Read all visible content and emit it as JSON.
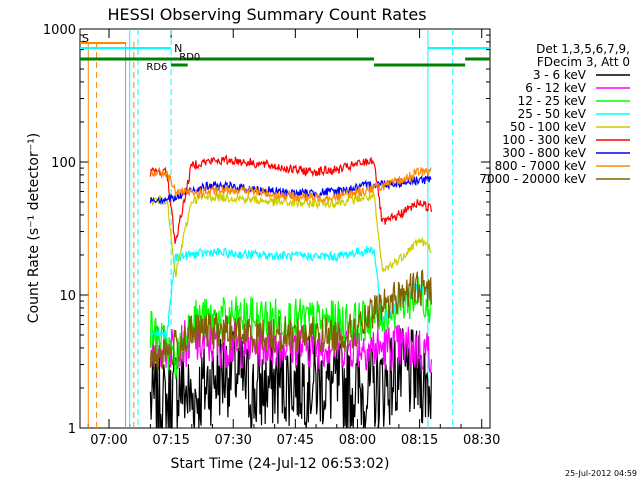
{
  "chart_data": {
    "type": "line",
    "title": "HESSI Observing Summary Count Rates",
    "xlabel": "Start Time (24-Jul-12 06:53:02)",
    "ylabel": "Count Rate (s⁻¹ detector⁻¹)",
    "yscale": "log",
    "ylim": [
      1,
      1000
    ],
    "xlim": [
      "06:53",
      "08:32"
    ],
    "x_ticks": [
      "07:00",
      "07:15",
      "07:30",
      "07:45",
      "08:00",
      "08:15",
      "08:30"
    ],
    "y_ticks": [
      "1",
      "10",
      "100",
      "1000"
    ],
    "grid": false,
    "legend_position": "right",
    "legend_header": [
      "Det 1,3,5,6,7,9,",
      "FDecim 3, Att 0"
    ],
    "footer": "25-Jul-2012 04:59",
    "series": [
      {
        "name": "3 - 6 keV",
        "color": "#000000",
        "points": [
          [
            "07:10",
            1.6
          ],
          [
            "07:14",
            1.5
          ],
          [
            "07:17",
            2.2
          ],
          [
            "07:20",
            1.6
          ],
          [
            "07:25",
            2.4
          ],
          [
            "07:30",
            2.8
          ],
          [
            "07:35",
            1.8
          ],
          [
            "07:40",
            2.2
          ],
          [
            "07:45",
            2.3
          ],
          [
            "07:50",
            2.2
          ],
          [
            "07:55",
            2.1
          ],
          [
            "08:00",
            1.9
          ],
          [
            "08:05",
            2.0
          ],
          [
            "08:10",
            2.6
          ],
          [
            "08:15",
            2.4
          ],
          [
            "08:18",
            2.0
          ]
        ]
      },
      {
        "name": "6 - 12 keV",
        "color": "#ff00ff",
        "points": [
          [
            "07:10",
            4.0
          ],
          [
            "07:15",
            4.1
          ],
          [
            "07:20",
            4.4
          ],
          [
            "07:25",
            4.3
          ],
          [
            "07:30",
            4.2
          ],
          [
            "07:40",
            4.3
          ],
          [
            "07:50",
            4.2
          ],
          [
            "08:00",
            4.2
          ],
          [
            "08:05",
            4.0
          ],
          [
            "08:10",
            4.1
          ],
          [
            "08:15",
            3.9
          ],
          [
            "08:18",
            3.8
          ]
        ]
      },
      {
        "name": "12 - 25 keV",
        "color": "#00ff00",
        "points": [
          [
            "07:10",
            5.6
          ],
          [
            "07:14",
            4.0
          ],
          [
            "07:16",
            3.1
          ],
          [
            "07:20",
            6.7
          ],
          [
            "07:25",
            6.6
          ],
          [
            "07:30",
            6.8
          ],
          [
            "07:40",
            6.7
          ],
          [
            "07:50",
            6.4
          ],
          [
            "08:00",
            6.2
          ],
          [
            "08:05",
            6.8
          ],
          [
            "08:10",
            8.4
          ],
          [
            "08:15",
            10.0
          ],
          [
            "08:18",
            8.6
          ]
        ]
      },
      {
        "name": "25 - 50 keV",
        "color": "#00ffff",
        "points": [
          [
            "07:10",
            5.2
          ],
          [
            "07:14",
            5.0
          ],
          [
            "07:16",
            19.2
          ],
          [
            "07:20",
            20.1
          ],
          [
            "07:25",
            21.0
          ],
          [
            "07:30",
            20.3
          ],
          [
            "07:40",
            19.8
          ],
          [
            "07:45",
            19.6
          ],
          [
            "07:50",
            19.5
          ],
          [
            "07:55",
            19.5
          ],
          [
            "08:00",
            21.0
          ],
          [
            "08:04",
            22.0
          ],
          [
            "08:06",
            6.5
          ],
          [
            "08:10",
            8.5
          ],
          [
            "08:14",
            11.5
          ],
          [
            "08:18",
            10.0
          ]
        ]
      },
      {
        "name": "50 - 100 keV",
        "color": "#cccc00",
        "points": [
          [
            "07:10",
            51.0
          ],
          [
            "07:14",
            52.0
          ],
          [
            "07:16",
            13.8
          ],
          [
            "07:20",
            52.0
          ],
          [
            "07:25",
            55.0
          ],
          [
            "07:30",
            54.0
          ],
          [
            "07:35",
            52.0
          ],
          [
            "07:40",
            50.0
          ],
          [
            "07:45",
            49.0
          ],
          [
            "07:50",
            49.0
          ],
          [
            "07:55",
            49.5
          ],
          [
            "08:00",
            53.0
          ],
          [
            "08:04",
            55.0
          ],
          [
            "08:06",
            15.0
          ],
          [
            "08:10",
            18.5
          ],
          [
            "08:15",
            26.0
          ],
          [
            "08:18",
            22.0
          ]
        ]
      },
      {
        "name": "100 - 300 keV",
        "color": "#ff0000",
        "points": [
          [
            "07:10",
            84.0
          ],
          [
            "07:14",
            84.0
          ],
          [
            "07:16",
            24.5
          ],
          [
            "07:20",
            96.0
          ],
          [
            "07:25",
            102.0
          ],
          [
            "07:30",
            103.0
          ],
          [
            "07:35",
            98.0
          ],
          [
            "07:40",
            93.0
          ],
          [
            "07:45",
            87.0
          ],
          [
            "07:50",
            85.0
          ],
          [
            "07:55",
            87.0
          ],
          [
            "08:00",
            96.0
          ],
          [
            "08:04",
            104.0
          ],
          [
            "08:06",
            34.5
          ],
          [
            "08:10",
            40.0
          ],
          [
            "08:15",
            50.0
          ],
          [
            "08:18",
            44.0
          ]
        ]
      },
      {
        "name": "300 - 800 keV",
        "color": "#0000ff",
        "points": [
          [
            "07:10",
            52.5
          ],
          [
            "07:14",
            53.0
          ],
          [
            "07:16",
            53.0
          ],
          [
            "07:20",
            62.0
          ],
          [
            "07:25",
            66.0
          ],
          [
            "07:30",
            65.0
          ],
          [
            "07:35",
            62.0
          ],
          [
            "07:40",
            60.0
          ],
          [
            "07:45",
            58.0
          ],
          [
            "07:50",
            58.5
          ],
          [
            "07:55",
            60.0
          ],
          [
            "08:00",
            64.0
          ],
          [
            "08:04",
            68.0
          ],
          [
            "08:08",
            69.0
          ],
          [
            "08:12",
            71.0
          ],
          [
            "08:15",
            74.0
          ],
          [
            "08:18",
            72.0
          ]
        ]
      },
      {
        "name": "800 - 7000 keV",
        "color": "#ff8800",
        "points": [
          [
            "07:10",
            83.0
          ],
          [
            "07:14",
            83.0
          ],
          [
            "07:16",
            60.0
          ],
          [
            "07:20",
            58.0
          ],
          [
            "07:25",
            60.0
          ],
          [
            "07:30",
            62.0
          ],
          [
            "07:35",
            60.0
          ],
          [
            "07:40",
            57.0
          ],
          [
            "07:45",
            55.0
          ],
          [
            "07:50",
            54.0
          ],
          [
            "07:55",
            55.0
          ],
          [
            "08:00",
            59.0
          ],
          [
            "08:04",
            64.0
          ],
          [
            "08:08",
            68.0
          ],
          [
            "08:12",
            76.0
          ],
          [
            "08:15",
            85.0
          ],
          [
            "08:18",
            84.0
          ]
        ]
      },
      {
        "name": "7000 - 20000 keV",
        "color": "#806000",
        "points": [
          [
            "07:10",
            3.5
          ],
          [
            "07:15",
            3.8
          ],
          [
            "07:20",
            5.2
          ],
          [
            "07:25",
            5.4
          ],
          [
            "07:30",
            5.2
          ],
          [
            "07:35",
            5.0
          ],
          [
            "07:40",
            5.0
          ],
          [
            "07:45",
            5.1
          ],
          [
            "07:50",
            5.0
          ],
          [
            "07:55",
            5.0
          ],
          [
            "08:00",
            5.4
          ],
          [
            "08:05",
            7.8
          ],
          [
            "08:10",
            10.0
          ],
          [
            "08:15",
            11.5
          ],
          [
            "08:18",
            10.5
          ]
        ]
      }
    ],
    "annotations": [
      {
        "text": "S",
        "color": "#ff8800"
      },
      {
        "text": "N",
        "color": "#00ffff"
      },
      {
        "text": "RD0",
        "color": "#008000"
      },
      {
        "text": "RD6",
        "color": "#008000"
      }
    ],
    "markers": {
      "cyan_solid_times": [
        "07:05",
        "08:17"
      ],
      "cyan_dashed_times": [
        "07:07",
        "07:15",
        "08:23"
      ],
      "orange_solid_times": [
        "06:55",
        "07:04"
      ],
      "orange_dashed_times": [
        "06:57",
        "07:06"
      ]
    }
  }
}
